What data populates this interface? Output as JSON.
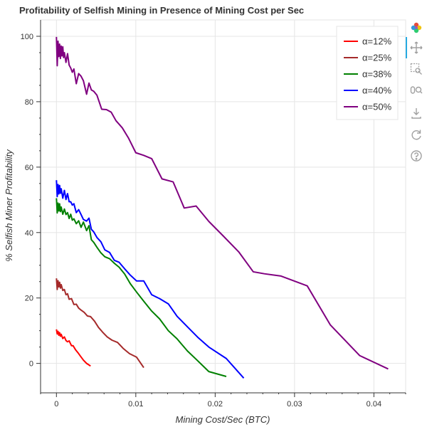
{
  "chart_data": {
    "type": "line",
    "title": "Profitability of Selfish Mining in Presence of Mining Cost per Sec",
    "xlabel": "Mining Cost/Sec (BTC)",
    "ylabel": "% Selfish Miner Profitability",
    "xlim": [
      -0.002,
      0.044
    ],
    "ylim": [
      -9,
      105
    ],
    "xticks": [
      0,
      0.01,
      0.02,
      0.03,
      0.04
    ],
    "xtick_labels": [
      "0",
      "0.01",
      "0.02",
      "0.03",
      "0.04"
    ],
    "yticks": [
      0,
      20,
      40,
      60,
      80,
      100
    ],
    "ytick_labels": [
      "0",
      "20",
      "40",
      "60",
      "80",
      "100"
    ],
    "grid": true,
    "legend_position": "top-right",
    "series": [
      {
        "name": "α=12%",
        "color": "#ff0000",
        "points": [
          [
            0,
            10.4
          ],
          [
            0.0001,
            9.0
          ],
          [
            0.0002,
            9.8
          ],
          [
            0.0003,
            8.6
          ],
          [
            0.0004,
            9.4
          ],
          [
            0.0005,
            8.3
          ],
          [
            0.0006,
            8.9
          ],
          [
            0.0008,
            7.6
          ],
          [
            0.001,
            8.1
          ],
          [
            0.0012,
            7.0
          ],
          [
            0.0014,
            6.6
          ],
          [
            0.0016,
            6.9
          ],
          [
            0.0019,
            5.4
          ],
          [
            0.0021,
            5.4
          ],
          [
            0.0024,
            4.2
          ],
          [
            0.0027,
            3.3
          ],
          [
            0.003,
            2.3
          ],
          [
            0.0034,
            1.0
          ],
          [
            0.0038,
            0.0
          ],
          [
            0.0043,
            -0.8
          ]
        ]
      },
      {
        "name": "α=25%",
        "color": "#a52a2a",
        "points": [
          [
            0,
            26.0
          ],
          [
            0.0001,
            22.6
          ],
          [
            0.0002,
            25.3
          ],
          [
            0.0003,
            23.4
          ],
          [
            0.0004,
            24.8
          ],
          [
            0.0005,
            23.0
          ],
          [
            0.0006,
            24.1
          ],
          [
            0.0008,
            22.3
          ],
          [
            0.001,
            22.6
          ],
          [
            0.0012,
            21.0
          ],
          [
            0.0014,
            21.3
          ],
          [
            0.0016,
            19.6
          ],
          [
            0.0019,
            19.8
          ],
          [
            0.0022,
            18.0
          ],
          [
            0.0025,
            18.1
          ],
          [
            0.0028,
            16.9
          ],
          [
            0.0031,
            16.3
          ],
          [
            0.0035,
            15.6
          ],
          [
            0.0039,
            14.5
          ],
          [
            0.0043,
            14.3
          ],
          [
            0.0048,
            12.9
          ],
          [
            0.0053,
            11.0
          ],
          [
            0.0058,
            9.6
          ],
          [
            0.0064,
            8.1
          ],
          [
            0.007,
            7.1
          ],
          [
            0.0077,
            6.4
          ],
          [
            0.0084,
            4.6
          ],
          [
            0.0092,
            3.0
          ],
          [
            0.0101,
            1.9
          ],
          [
            0.011,
            -1.3
          ]
        ]
      },
      {
        "name": "α=38%",
        "color": "#008000",
        "points": [
          [
            0,
            50.5
          ],
          [
            0.0001,
            46.0
          ],
          [
            0.0002,
            49.0
          ],
          [
            0.0003,
            46.6
          ],
          [
            0.0004,
            48.8
          ],
          [
            0.0005,
            46.4
          ],
          [
            0.0006,
            47.8
          ],
          [
            0.0008,
            45.6
          ],
          [
            0.001,
            47.2
          ],
          [
            0.0012,
            45.5
          ],
          [
            0.0014,
            46.1
          ],
          [
            0.0016,
            44.3
          ],
          [
            0.0018,
            45.6
          ],
          [
            0.002,
            43.8
          ],
          [
            0.0022,
            44.2
          ],
          [
            0.0025,
            42.7
          ],
          [
            0.0028,
            43.6
          ],
          [
            0.0031,
            41.6
          ],
          [
            0.0034,
            43.2
          ],
          [
            0.0038,
            40.6
          ],
          [
            0.0041,
            42.1
          ],
          [
            0.0044,
            37.8
          ],
          [
            0.0047,
            37.0
          ],
          [
            0.0051,
            35.5
          ],
          [
            0.0056,
            33.8
          ],
          [
            0.0061,
            32.6
          ],
          [
            0.0067,
            32.0
          ],
          [
            0.0073,
            30.6
          ],
          [
            0.0079,
            29.4
          ],
          [
            0.0086,
            27.3
          ],
          [
            0.0093,
            24.4
          ],
          [
            0.0101,
            21.8
          ],
          [
            0.011,
            19.0
          ],
          [
            0.012,
            16.0
          ],
          [
            0.013,
            13.6
          ],
          [
            0.0141,
            10.0
          ],
          [
            0.0152,
            7.5
          ],
          [
            0.0165,
            3.8
          ],
          [
            0.0178,
            0.8
          ],
          [
            0.0192,
            -2.5
          ],
          [
            0.0214,
            -4.0
          ]
        ]
      },
      {
        "name": "α=40%",
        "color": "#0000ff",
        "points": [
          [
            0,
            56.0
          ],
          [
            0.0001,
            51.0
          ],
          [
            0.0002,
            54.7
          ],
          [
            0.0003,
            51.8
          ],
          [
            0.0004,
            54.4
          ],
          [
            0.0005,
            52.0
          ],
          [
            0.0006,
            53.4
          ],
          [
            0.0008,
            50.5
          ],
          [
            0.001,
            52.9
          ],
          [
            0.0012,
            50.1
          ],
          [
            0.0014,
            51.9
          ],
          [
            0.0016,
            49.4
          ],
          [
            0.0018,
            49.4
          ],
          [
            0.002,
            48.4
          ],
          [
            0.0022,
            48.8
          ],
          [
            0.0025,
            46.1
          ],
          [
            0.0028,
            47.0
          ],
          [
            0.0031,
            45.5
          ],
          [
            0.0034,
            44.0
          ],
          [
            0.0038,
            43.5
          ],
          [
            0.0041,
            44.4
          ],
          [
            0.0044,
            41.0
          ],
          [
            0.0047,
            40.2
          ],
          [
            0.0051,
            38.5
          ],
          [
            0.0056,
            37.2
          ],
          [
            0.0061,
            34.7
          ],
          [
            0.0067,
            33.9
          ],
          [
            0.0073,
            31.5
          ],
          [
            0.0079,
            30.9
          ],
          [
            0.0086,
            28.9
          ],
          [
            0.0093,
            27.0
          ],
          [
            0.0101,
            25.2
          ],
          [
            0.011,
            25.2
          ],
          [
            0.012,
            21.0
          ],
          [
            0.013,
            19.8
          ],
          [
            0.0141,
            18.2
          ],
          [
            0.0152,
            14.4
          ],
          [
            0.0165,
            11.2
          ],
          [
            0.0178,
            8.0
          ],
          [
            0.0192,
            5.0
          ],
          [
            0.0214,
            1.5
          ],
          [
            0.0236,
            -4.5
          ]
        ]
      },
      {
        "name": "α=50%",
        "color": "#800080",
        "points": [
          [
            0,
            99.8
          ],
          [
            0.0001,
            91.0
          ],
          [
            0.0002,
            98.5
          ],
          [
            0.0003,
            93.8
          ],
          [
            0.0004,
            97.6
          ],
          [
            0.0005,
            93.2
          ],
          [
            0.0006,
            97.0
          ],
          [
            0.0007,
            94.0
          ],
          [
            0.0008,
            96.8
          ],
          [
            0.0009,
            93.5
          ],
          [
            0.001,
            95.0
          ],
          [
            0.0012,
            92.0
          ],
          [
            0.0014,
            94.7
          ],
          [
            0.0016,
            91.2
          ],
          [
            0.0018,
            90.3
          ],
          [
            0.002,
            89.0
          ],
          [
            0.0022,
            90.0
          ],
          [
            0.0025,
            85.5
          ],
          [
            0.0028,
            88.6
          ],
          [
            0.0031,
            87.8
          ],
          [
            0.0034,
            86.4
          ],
          [
            0.0038,
            82.3
          ],
          [
            0.0041,
            85.7
          ],
          [
            0.0044,
            83.6
          ],
          [
            0.0047,
            83.2
          ],
          [
            0.0051,
            82.0
          ],
          [
            0.0057,
            77.7
          ],
          [
            0.0063,
            77.6
          ],
          [
            0.0069,
            76.8
          ],
          [
            0.0075,
            74.2
          ],
          [
            0.0083,
            72.0
          ],
          [
            0.0091,
            68.8
          ],
          [
            0.01,
            64.4
          ],
          [
            0.011,
            63.6
          ],
          [
            0.012,
            62.6
          ],
          [
            0.0133,
            56.4
          ],
          [
            0.0147,
            55.5
          ],
          [
            0.0161,
            47.5
          ],
          [
            0.0176,
            48.1
          ],
          [
            0.0192,
            43.4
          ],
          [
            0.021,
            39.0
          ],
          [
            0.023,
            34.0
          ],
          [
            0.0248,
            28.0
          ],
          [
            0.0262,
            27.4
          ],
          [
            0.0283,
            26.7
          ],
          [
            0.0316,
            23.7
          ],
          [
            0.0345,
            11.8
          ],
          [
            0.0382,
            2.4
          ],
          [
            0.0418,
            -1.7
          ]
        ]
      }
    ]
  },
  "toolbar": {
    "icons": [
      "bokeh-logo-icon",
      "pan-icon",
      "box-zoom-icon",
      "wheel-zoom-icon",
      "save-icon",
      "reset-icon",
      "help-icon"
    ]
  }
}
